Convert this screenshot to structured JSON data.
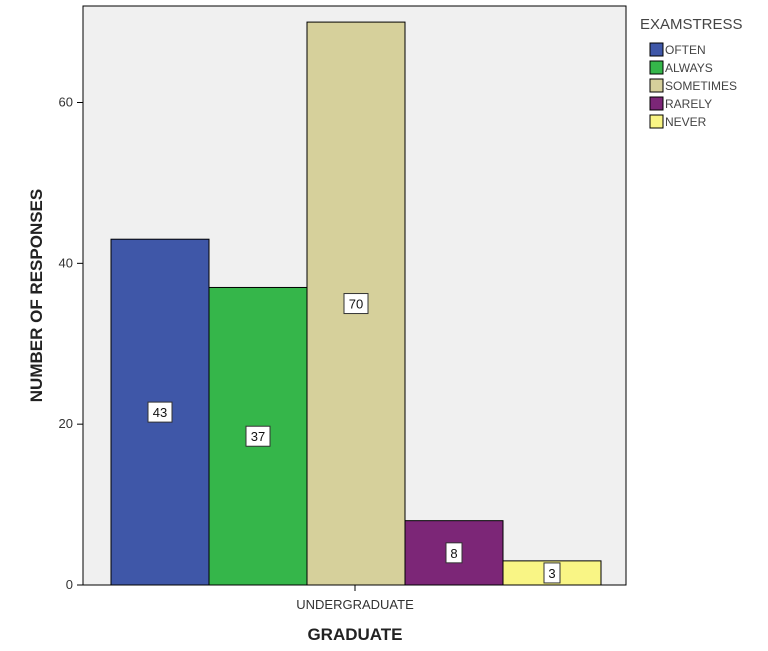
{
  "chart_data": {
    "type": "bar",
    "categories": [
      "UNDERGRADUATE"
    ],
    "series": [
      {
        "name": "OFTEN",
        "values": [
          43
        ],
        "color": "#3f57a8"
      },
      {
        "name": "ALWAYS",
        "values": [
          37
        ],
        "color": "#35b64a"
      },
      {
        "name": "SOMETIMES",
        "values": [
          70
        ],
        "color": "#d6d09b"
      },
      {
        "name": "RARELY",
        "values": [
          8
        ],
        "color": "#7c2677"
      },
      {
        "name": "NEVER",
        "values": [
          3
        ],
        "color": "#f9f585"
      }
    ],
    "title": "",
    "xlabel": "GRADUATE",
    "ylabel": "NUMBER OF RESPONSES",
    "ylim": [
      0,
      72
    ],
    "yticks": [
      0,
      20,
      40,
      60
    ],
    "legend": {
      "title": "EXAMSTRESS",
      "placement": "right"
    },
    "grid": false,
    "plot_background": "#f0f0f0"
  }
}
